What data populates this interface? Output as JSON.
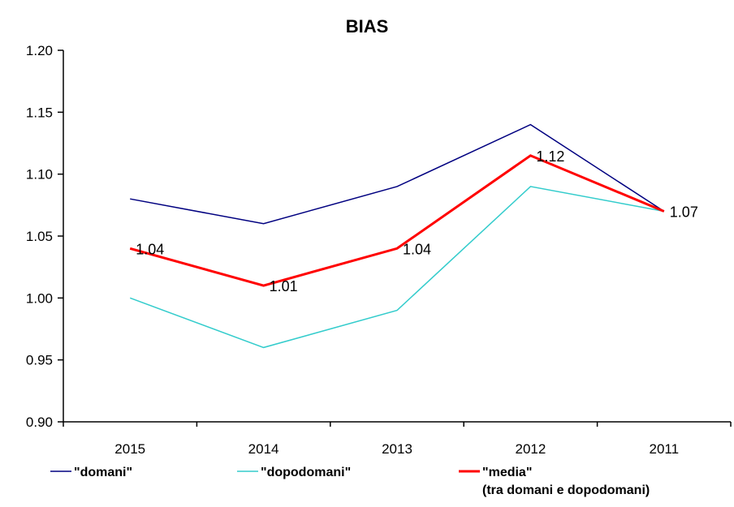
{
  "chart_data": {
    "type": "line",
    "title": "BIAS",
    "categories": [
      "2015",
      "2014",
      "2013",
      "2012",
      "2011"
    ],
    "ylim": [
      0.9,
      1.2
    ],
    "yticks": [
      "0.90",
      "0.95",
      "1.00",
      "1.05",
      "1.10",
      "1.15",
      "1.20"
    ],
    "grid": false,
    "legend_position": "bottom",
    "series": [
      {
        "name": "\"domani\"",
        "values": [
          1.08,
          1.06,
          1.09,
          1.14,
          1.07
        ],
        "color": "#000080",
        "width": 1.5
      },
      {
        "name": "\"dopodomani\"",
        "values": [
          1.0,
          0.96,
          0.99,
          1.09,
          1.07
        ],
        "color": "#33cccc",
        "width": 1.5
      },
      {
        "name": "\"media\"",
        "name_line2": "(tra domani e dopodomani)",
        "values": [
          1.04,
          1.01,
          1.04,
          1.115,
          1.07
        ],
        "color": "#ff0000",
        "width": 3,
        "labels": [
          "1.04",
          "1.01",
          "1.04",
          "1.12",
          "1.07"
        ]
      }
    ]
  }
}
